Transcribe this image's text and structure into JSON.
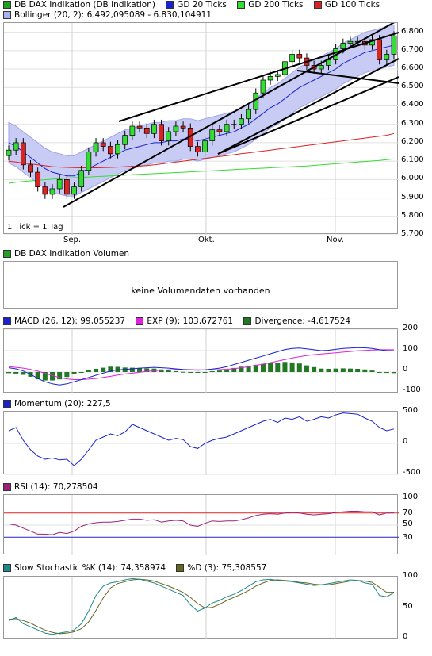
{
  "main_panel": {
    "legend": [
      {
        "label": "DB DAX Indikation (DB Indikation)",
        "color": "#22a022"
      },
      {
        "label": "GD 20 Ticks",
        "color": "#1a22cc"
      },
      {
        "label": "GD 200 Ticks",
        "color": "#33dd33"
      },
      {
        "label": "GD 100 Ticks",
        "color": "#dd2222"
      }
    ],
    "legend2": {
      "label": "Bollinger (20, 2): 6.492,095089 - 6.830,104911",
      "color": "#aab0f0"
    },
    "y_ticks": [
      "6.800",
      "6.700",
      "6.600",
      "6.500",
      "6.400",
      "6.300",
      "6.200",
      "6.100",
      "6.000",
      "5.900",
      "5.800",
      "5.700"
    ],
    "x_ticks": [
      "Sep.",
      "Okt.",
      "Nov."
    ],
    "note": "1 Tick = 1 Tag"
  },
  "volume_panel": {
    "legend": {
      "label": "DB DAX Indikation Volumen",
      "color": "#22a022"
    },
    "message": "keine Volumendaten vorhanden"
  },
  "macd_panel": {
    "legend": [
      {
        "label": "MACD (26, 12): 99,055237",
        "color": "#1a22cc"
      },
      {
        "label": "EXP (9): 103,672761",
        "color": "#dd22dd"
      },
      {
        "label": "Divergence: -4,617524",
        "color": "#227722"
      }
    ],
    "y_ticks": [
      "200",
      "100",
      "0",
      "-100"
    ]
  },
  "momentum_panel": {
    "legend": {
      "label": "Momentum (20): 227,5",
      "color": "#1a22cc"
    },
    "y_ticks": [
      "500",
      "0",
      "-500"
    ]
  },
  "rsi_panel": {
    "legend": {
      "label": "RSI (14): 70,278504",
      "color": "#9a2277"
    },
    "y_ticks": [
      "100",
      "70",
      "50",
      "30"
    ]
  },
  "stoch_panel": {
    "legend": [
      {
        "label": "Slow Stochastic %K (14): 74,358974",
        "color": "#228888"
      },
      {
        "label": "%D (3): 75,308557",
        "color": "#666622"
      }
    ],
    "y_ticks": [
      "100",
      "50",
      "0"
    ]
  },
  "chart_data": [
    {
      "type": "candlestick",
      "title": "DB DAX Indikation (DB Indikation)",
      "ylim": [
        5700,
        6850
      ],
      "x_labels": [
        "Sep.",
        "Okt.",
        "Nov."
      ],
      "series": [
        {
          "name": "DB DAX Indikation (DB Indikation)",
          "close": [
            6160,
            6200,
            6080,
            6040,
            5960,
            5920,
            5950,
            6000,
            5920,
            5960,
            6050,
            6150,
            6200,
            6180,
            6140,
            6190,
            6240,
            6290,
            6280,
            6250,
            6300,
            6210,
            6260,
            6290,
            6280,
            6180,
            6150,
            6210,
            6270,
            6260,
            6300,
            6300,
            6330,
            6380,
            6470,
            6540,
            6560,
            6570,
            6640,
            6680,
            6660,
            6620,
            6600,
            6620,
            6650,
            6710,
            6740,
            6750,
            6750,
            6730,
            6760,
            6650,
            6680,
            6780
          ]
        },
        {
          "name": "GD 20 Ticks",
          "values": [
            6200,
            6180,
            6150,
            6120,
            6090,
            6060,
            6040,
            6030,
            6020,
            6020,
            6040,
            6060,
            6080,
            6100,
            6120,
            6140,
            6160,
            6170,
            6180,
            6190,
            6200,
            6200,
            6210,
            6210,
            6220,
            6220,
            6210,
            6220,
            6230,
            6240,
            6250,
            6260,
            6280,
            6300,
            6330,
            6360,
            6390,
            6410,
            6440,
            6470,
            6500,
            6520,
            6540,
            6560,
            6580,
            6600,
            6630,
            6650,
            6670,
            6690,
            6700,
            6710,
            6720,
            6730
          ]
        },
        {
          "name": "GD 100 Ticks",
          "values": [
            6100,
            6095,
            6090,
            6085,
            6080,
            6075,
            6070,
            6068,
            6066,
            6065,
            6064,
            6064,
            6064,
            6065,
            6066,
            6068,
            6070,
            6072,
            6074,
            6076,
            6080,
            6085,
            6090,
            6095,
            6100,
            6105,
            6110,
            6115,
            6120,
            6125,
            6130,
            6135,
            6140,
            6145,
            6150,
            6155,
            6160,
            6165,
            6170,
            6175,
            6180,
            6185,
            6190,
            6195,
            6200,
            6205,
            6210,
            6215,
            6220,
            6225,
            6230,
            6235,
            6240,
            6250
          ]
        },
        {
          "name": "GD 200 Ticks",
          "values": [
            5980,
            5985,
            5990,
            5993,
            5996,
            5999,
            6002,
            6005,
            6008,
            6010,
            6012,
            6014,
            6016,
            6018,
            6020,
            6022,
            6024,
            6026,
            6028,
            6030,
            6032,
            6034,
            6036,
            6038,
            6040,
            6042,
            6044,
            6046,
            6048,
            6050,
            6052,
            6054,
            6056,
            6058,
            6060,
            6062,
            6064,
            6066,
            6068,
            6070,
            6072,
            6074,
            6077,
            6080,
            6083,
            6086,
            6089,
            6092,
            6095,
            6098,
            6101,
            6104,
            6108,
            6112
          ]
        }
      ]
    },
    {
      "type": "line",
      "title": "MACD (26, 12)",
      "ylim": [
        -100,
        200
      ],
      "series": [
        {
          "name": "MACD (26, 12): 99,055237",
          "values": [
            20,
            15,
            5,
            -10,
            -30,
            -45,
            -55,
            -60,
            -55,
            -45,
            -35,
            -25,
            -15,
            -5,
            5,
            10,
            12,
            15,
            18,
            20,
            22,
            20,
            18,
            15,
            12,
            10,
            8,
            10,
            14,
            18,
            25,
            35,
            45,
            55,
            65,
            75,
            85,
            95,
            105,
            110,
            112,
            108,
            104,
            100,
            102,
            106,
            110,
            112,
            114,
            113,
            110,
            104,
            100,
            99
          ]
        },
        {
          "name": "EXP (9): 103,672761",
          "values": [
            25,
            22,
            18,
            12,
            4,
            -6,
            -16,
            -26,
            -32,
            -35,
            -35,
            -33,
            -30,
            -25,
            -20,
            -14,
            -9,
            -5,
            -1,
            3,
            6,
            8,
            10,
            11,
            11,
            11,
            10,
            10,
            10,
            11,
            13,
            16,
            20,
            25,
            31,
            37,
            44,
            51,
            58,
            65,
            72,
            77,
            81,
            84,
            87,
            90,
            93,
            96,
            99,
            101,
            103,
            104,
            104,
            104
          ]
        }
      ]
    },
    {
      "type": "line",
      "title": "Momentum (20)",
      "ylim": [
        -500,
        500
      ],
      "series": [
        {
          "name": "Momentum (20): 227,5",
          "values": [
            200,
            250,
            50,
            -100,
            -200,
            -250,
            -230,
            -260,
            -250,
            -350,
            -250,
            -100,
            50,
            100,
            150,
            120,
            180,
            300,
            250,
            200,
            150,
            100,
            50,
            80,
            60,
            -50,
            -80,
            0,
            50,
            80,
            100,
            150,
            200,
            250,
            300,
            350,
            380,
            330,
            400,
            380,
            420,
            350,
            380,
            420,
            400,
            450,
            480,
            470,
            460,
            400,
            350,
            250,
            200,
            227.5
          ]
        }
      ]
    },
    {
      "type": "line",
      "title": "RSI (14)",
      "ylim": [
        0,
        100
      ],
      "series": [
        {
          "name": "RSI (14): 70,278504",
          "values": [
            52,
            50,
            45,
            40,
            35,
            35,
            34,
            38,
            36,
            40,
            48,
            52,
            54,
            55,
            55,
            56,
            58,
            60,
            60,
            58,
            59,
            55,
            57,
            58,
            57,
            50,
            48,
            53,
            57,
            56,
            57,
            57,
            59,
            62,
            66,
            68,
            69,
            68,
            70,
            71,
            70,
            68,
            67,
            68,
            69,
            71,
            72,
            73,
            73,
            72,
            72,
            67,
            70,
            70.3
          ]
        }
      ]
    },
    {
      "type": "line",
      "title": "Slow Stochastic",
      "ylim": [
        0,
        100
      ],
      "series": [
        {
          "name": "Slow Stochastic %K (14): 74,358974",
          "values": [
            30,
            35,
            25,
            20,
            15,
            10,
            8,
            10,
            12,
            15,
            25,
            45,
            70,
            85,
            90,
            92,
            95,
            97,
            96,
            93,
            90,
            85,
            80,
            75,
            70,
            55,
            45,
            50,
            58,
            62,
            68,
            72,
            78,
            85,
            92,
            95,
            96,
            94,
            93,
            92,
            90,
            88,
            86,
            87,
            89,
            91,
            93,
            95,
            94,
            90,
            88,
            70,
            68,
            74.4
          ]
        },
        {
          "name": "%D (3): 75,308557",
          "values": [
            32,
            33,
            30,
            26,
            20,
            15,
            11,
            9,
            10,
            12,
            17,
            28,
            46,
            66,
            82,
            89,
            92,
            95,
            96,
            95,
            93,
            89,
            85,
            80,
            75,
            67,
            57,
            50,
            51,
            56,
            62,
            67,
            72,
            78,
            85,
            90,
            94,
            95,
            94,
            93,
            91,
            90,
            88,
            87,
            87,
            89,
            91,
            93,
            94,
            93,
            91,
            83,
            75,
            75.3
          ]
        }
      ]
    }
  ]
}
